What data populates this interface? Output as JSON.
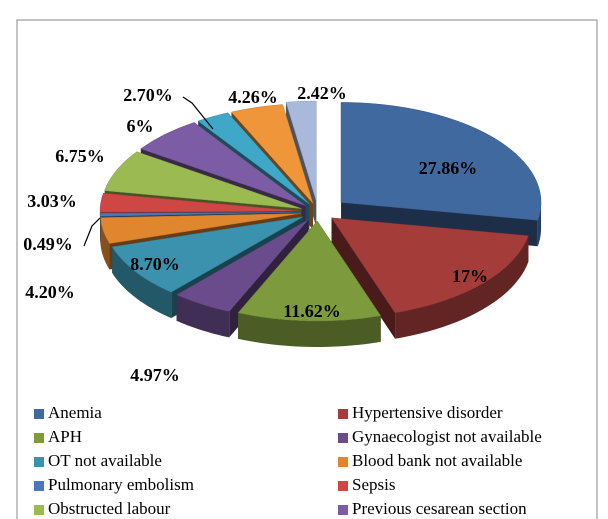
{
  "chart_data": {
    "type": "pie3d",
    "categories": [
      "Anemia",
      "Hypertensive disorder",
      "APH",
      "Gynaecologist not available",
      "OT not available",
      "Blood bank not available",
      "Pulmonary embolism",
      "Sepsis",
      "Obstructed labour",
      "Previous cesarean section",
      null,
      null,
      null
    ],
    "values": [
      27.86,
      17,
      11.62,
      4.97,
      8.7,
      4.2,
      0.49,
      3.03,
      6.75,
      6,
      2.7,
      4.26,
      2.42
    ],
    "value_labels": [
      "27.86%",
      "17%",
      "11.62%",
      "4.97%",
      "8.70%",
      "4.20%",
      "0.49%",
      "3.03%",
      "6.75%",
      "6%",
      "2.70%",
      "4.26%",
      "2.42%"
    ],
    "colors": [
      "#4069a0",
      "#a43d3a",
      "#7d9a3c",
      "#6a4c8c",
      "#3a92ae",
      "#e0862e",
      "#4a78bc",
      "#cf4745",
      "#9bbb52",
      "#7c5ca4",
      "#3fa8c8",
      "#f0963a",
      "#a9b9dc"
    ]
  }
}
